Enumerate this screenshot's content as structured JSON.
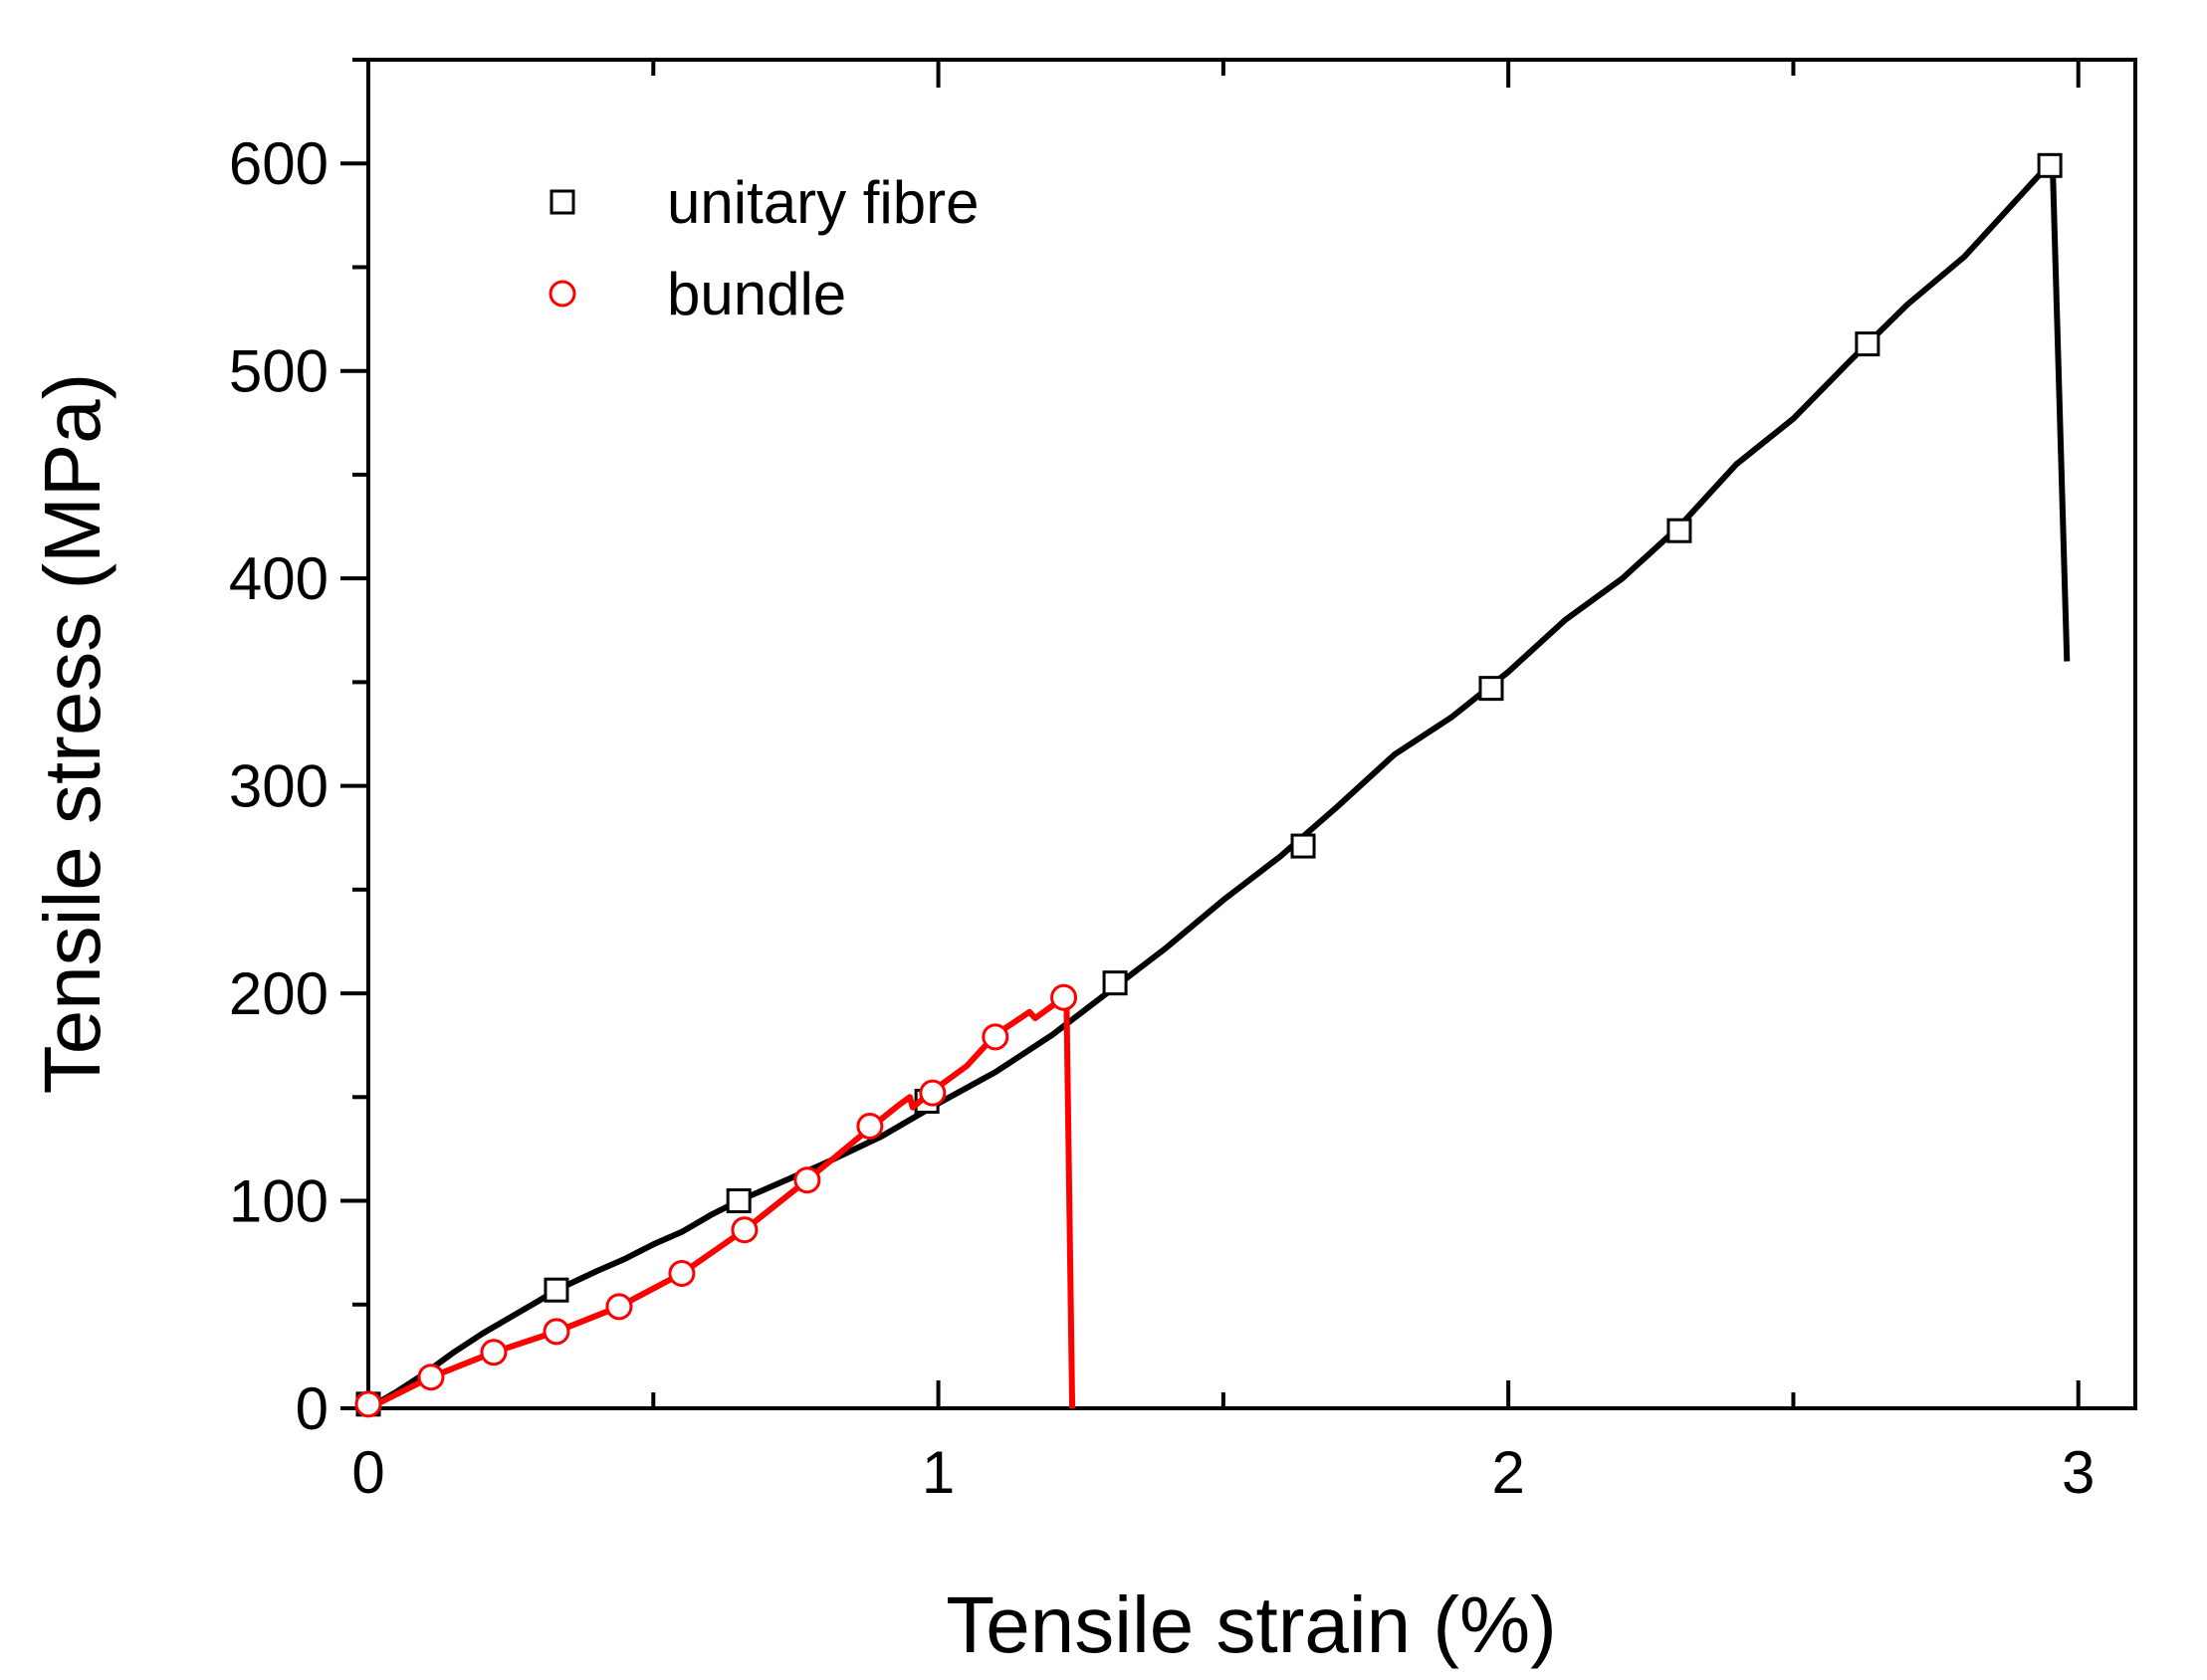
{
  "chart_data": {
    "type": "line",
    "xlabel": "Tensile strain (%)",
    "ylabel": "Tensile stress (MPa)",
    "xlim": [
      0,
      3.1
    ],
    "ylim": [
      0,
      650
    ],
    "x_ticks": [
      0,
      1,
      2,
      3
    ],
    "x_tick_labels": [
      "0",
      "1",
      "2",
      "3"
    ],
    "y_ticks": [
      0,
      100,
      200,
      300,
      400,
      500,
      600
    ],
    "y_tick_labels": [
      "0",
      "100",
      "200",
      "300",
      "400",
      "500",
      "600"
    ],
    "legend_position": "top-left",
    "grid": false,
    "series": [
      {
        "name": "unitary fibre",
        "color": "#000000",
        "marker": "square",
        "line": [
          [
            0,
            0
          ],
          [
            0.05,
            8
          ],
          [
            0.1,
            17
          ],
          [
            0.15,
            27
          ],
          [
            0.2,
            36
          ],
          [
            0.25,
            44
          ],
          [
            0.3,
            52
          ],
          [
            0.33,
            57
          ],
          [
            0.4,
            66
          ],
          [
            0.45,
            72
          ],
          [
            0.5,
            79
          ],
          [
            0.55,
            85
          ],
          [
            0.6,
            93
          ],
          [
            0.65,
            100
          ],
          [
            0.7,
            106
          ],
          [
            0.8,
            118
          ],
          [
            0.9,
            131
          ],
          [
            1.0,
            147
          ],
          [
            1.1,
            162
          ],
          [
            1.2,
            180
          ],
          [
            1.3,
            201
          ],
          [
            1.4,
            222
          ],
          [
            1.5,
            245
          ],
          [
            1.6,
            266
          ],
          [
            1.7,
            290
          ],
          [
            1.8,
            315
          ],
          [
            1.9,
            333
          ],
          [
            2.0,
            355
          ],
          [
            2.1,
            380
          ],
          [
            2.2,
            400
          ],
          [
            2.3,
            425
          ],
          [
            2.4,
            455
          ],
          [
            2.5,
            477
          ],
          [
            2.6,
            505
          ],
          [
            2.7,
            532
          ],
          [
            2.8,
            555
          ],
          [
            2.9,
            585
          ],
          [
            2.95,
            600
          ],
          [
            2.955,
            598
          ],
          [
            2.98,
            360
          ]
        ],
        "markers": [
          [
            0,
            2
          ],
          [
            0.33,
            57
          ],
          [
            0.65,
            100
          ],
          [
            0.98,
            148
          ],
          [
            1.31,
            205
          ],
          [
            1.64,
            271
          ],
          [
            1.97,
            347
          ],
          [
            2.3,
            423
          ],
          [
            2.63,
            513
          ],
          [
            2.95,
            599
          ]
        ]
      },
      {
        "name": "bundle",
        "color": "#ff0000",
        "marker": "circle",
        "line": [
          [
            0,
            0
          ],
          [
            0.11,
            15
          ],
          [
            0.22,
            27
          ],
          [
            0.33,
            37
          ],
          [
            0.44,
            49
          ],
          [
            0.55,
            65
          ],
          [
            0.66,
            86
          ],
          [
            0.77,
            110
          ],
          [
            0.88,
            135
          ],
          [
            0.93,
            146
          ],
          [
            0.95,
            150
          ],
          [
            0.955,
            145
          ],
          [
            0.99,
            153
          ],
          [
            1.05,
            165
          ],
          [
            1.1,
            180
          ],
          [
            1.16,
            191
          ],
          [
            1.17,
            188
          ],
          [
            1.22,
            198
          ],
          [
            1.225,
            195
          ],
          [
            1.235,
            0
          ]
        ],
        "markers": [
          [
            0,
            2
          ],
          [
            0.11,
            15
          ],
          [
            0.22,
            27
          ],
          [
            0.33,
            37
          ],
          [
            0.44,
            49
          ],
          [
            0.55,
            65
          ],
          [
            0.66,
            86
          ],
          [
            0.77,
            110
          ],
          [
            0.88,
            136
          ],
          [
            0.99,
            152
          ],
          [
            1.1,
            179
          ],
          [
            1.22,
            198
          ]
        ]
      }
    ]
  }
}
